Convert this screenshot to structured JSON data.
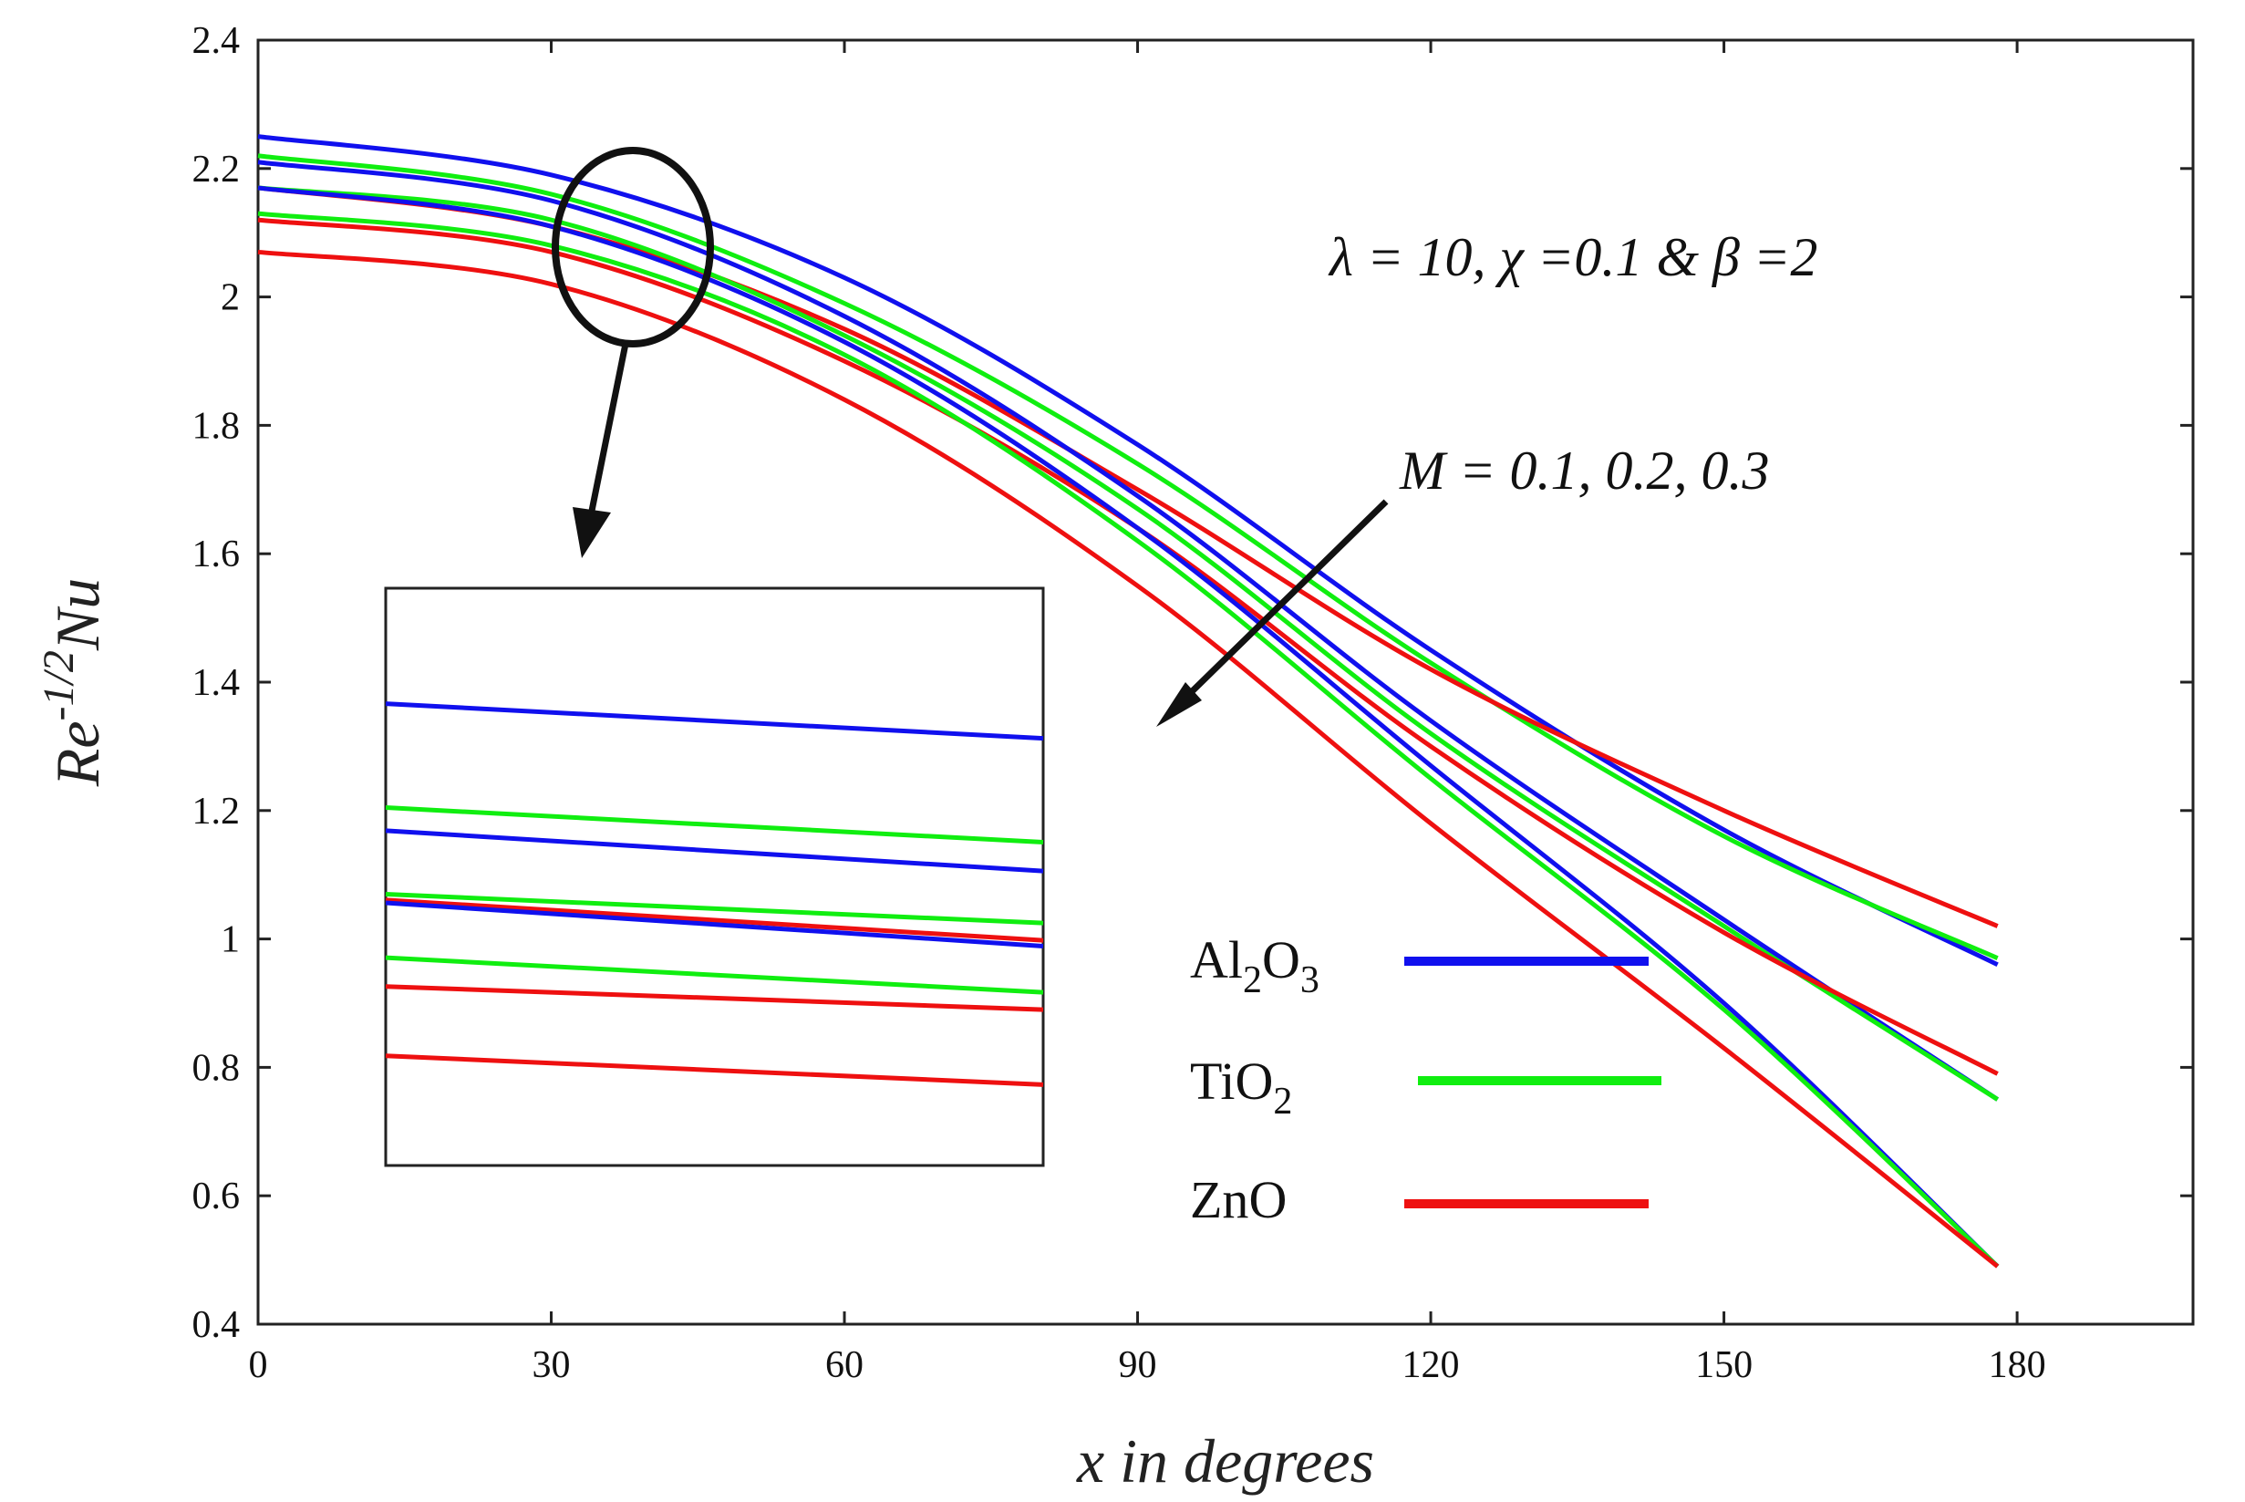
{
  "chart_data": {
    "type": "line",
    "xlabel": "x in degrees",
    "ylabel": {
      "base": "Re",
      "sup": "-1/2",
      "rest": "Nu"
    },
    "xlim": [
      0,
      198
    ],
    "ylim": [
      0.4,
      2.4
    ],
    "xticks": [
      "0",
      "30",
      "60",
      "90",
      "120",
      "150",
      "180"
    ],
    "yticks": [
      "0.4",
      "0.6",
      "0.8",
      "1",
      "1.2",
      "1.4",
      "1.6",
      "1.8",
      "2",
      "2.2",
      "2.4"
    ],
    "annotations": {
      "params": "λ = 10, χ =0.1 & β =2",
      "trend": "M = 0.1, 0.2, 0.3"
    },
    "legend": [
      {
        "label": "Al",
        "sub1": "2",
        "mid": "O",
        "sub2": "3",
        "color": "#1010ee"
      },
      {
        "label": "Ti",
        "sub1": "",
        "mid": "O",
        "sub2": "2",
        "color": "#10ee10"
      },
      {
        "label": "Zn",
        "sub1": "",
        "mid": "O",
        "sub2": "",
        "color": "#ee1010"
      }
    ],
    "x": [
      0,
      30,
      60,
      90,
      120,
      150,
      178
    ],
    "series": [
      {
        "name": "Al2O3, M=0.1",
        "color": "#1010ee",
        "values": [
          2.25,
          2.19,
          2.03,
          1.77,
          1.45,
          1.17,
          0.96
        ]
      },
      {
        "name": "TiO2, M=0.1",
        "color": "#10ee10",
        "values": [
          2.22,
          2.16,
          1.99,
          1.74,
          1.43,
          1.16,
          0.97
        ]
      },
      {
        "name": "ZnO, M=0.1",
        "color": "#ee1010",
        "values": [
          2.17,
          2.11,
          1.95,
          1.7,
          1.42,
          1.2,
          1.02
        ]
      },
      {
        "name": "Al2O3, M=0.2",
        "color": "#1010ee",
        "values": [
          2.21,
          2.15,
          1.97,
          1.69,
          1.34,
          1.03,
          0.75
        ]
      },
      {
        "name": "TiO2, M=0.2",
        "color": "#10ee10",
        "values": [
          2.17,
          2.12,
          1.94,
          1.67,
          1.32,
          1.02,
          0.75
        ]
      },
      {
        "name": "ZnO, M=0.2",
        "color": "#ee1010",
        "values": [
          2.12,
          2.07,
          1.9,
          1.64,
          1.3,
          1.01,
          0.79
        ]
      },
      {
        "name": "Al2O3, M=0.3",
        "color": "#1010ee",
        "values": [
          2.17,
          2.11,
          1.93,
          1.64,
          1.27,
          0.9,
          0.49
        ]
      },
      {
        "name": "TiO2, M=0.3",
        "color": "#10ee10",
        "values": [
          2.13,
          2.08,
          1.91,
          1.62,
          1.25,
          0.89,
          0.49
        ]
      },
      {
        "name": "ZnO, M=0.3",
        "color": "#ee1010",
        "values": [
          2.07,
          2.02,
          1.84,
          1.55,
          1.18,
          0.83,
          0.49
        ]
      }
    ],
    "inset": {
      "description_source": "zoom of circled region near x = 36",
      "series": [
        {
          "color": "#1010ee",
          "values": [
            0.8,
            0.74
          ]
        },
        {
          "color": "#10ee10",
          "values": [
            0.62,
            0.56
          ]
        },
        {
          "color": "#1010ee",
          "values": [
            0.58,
            0.51
          ]
        },
        {
          "color": "#10ee10",
          "values": [
            0.47,
            0.42
          ]
        },
        {
          "color": "#ee1010",
          "values": [
            0.46,
            0.39
          ]
        },
        {
          "color": "#1010ee",
          "values": [
            0.455,
            0.38
          ]
        },
        {
          "color": "#10ee10",
          "values": [
            0.36,
            0.3
          ]
        },
        {
          "color": "#ee1010",
          "values": [
            0.31,
            0.27
          ]
        },
        {
          "color": "#ee1010",
          "values": [
            0.19,
            0.14
          ]
        }
      ]
    }
  }
}
